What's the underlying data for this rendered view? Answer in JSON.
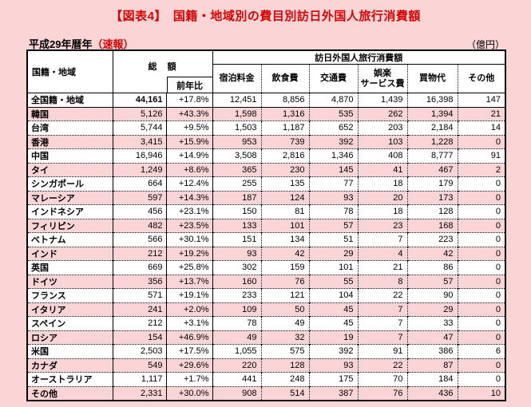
{
  "title": "【図表4】　国籍・地域別の費目別訪日外国人旅行消費額",
  "subtitle": {
    "era_label": "平成29年暦年",
    "flash_label": "（速報）",
    "unit_label": "（億円）"
  },
  "colors": {
    "accent_red": "#d60000",
    "pink_bg": "#fbd5d6",
    "row_white": "#ffffff",
    "border_black": "#000000"
  },
  "table": {
    "col_country": "国籍・地域",
    "col_total": "総　額",
    "col_yoy": "前年比",
    "group_header": "訪日外国人旅行消費額",
    "columns": [
      "宿泊料金",
      "飲食費",
      "交通費",
      "娯楽\nサービス費",
      "買物代",
      "その他"
    ],
    "rows": [
      {
        "name": "全国籍・地域",
        "total": "44,161",
        "yoy": "+17.8%",
        "values": [
          "12,451",
          "8,856",
          "4,870",
          "1,439",
          "16,398",
          "147"
        ],
        "bold_total": true
      },
      {
        "name": "韓国",
        "total": "5,126",
        "yoy": "+43.3%",
        "values": [
          "1,598",
          "1,316",
          "535",
          "262",
          "1,394",
          "21"
        ]
      },
      {
        "name": "台湾",
        "total": "5,744",
        "yoy": "+9.5%",
        "values": [
          "1,503",
          "1,187",
          "652",
          "203",
          "2,184",
          "14"
        ]
      },
      {
        "name": "香港",
        "total": "3,415",
        "yoy": "+15.9%",
        "values": [
          "953",
          "739",
          "392",
          "103",
          "1,228",
          "0"
        ]
      },
      {
        "name": "中国",
        "total": "16,946",
        "yoy": "+14.9%",
        "values": [
          "3,508",
          "2,816",
          "1,346",
          "408",
          "8,777",
          "91"
        ]
      },
      {
        "name": "タイ",
        "total": "1,249",
        "yoy": "+8.6%",
        "values": [
          "365",
          "230",
          "145",
          "41",
          "467",
          "2"
        ]
      },
      {
        "name": "シンガポール",
        "total": "664",
        "yoy": "+12.4%",
        "values": [
          "255",
          "135",
          "77",
          "18",
          "179",
          "0"
        ]
      },
      {
        "name": "マレーシア",
        "total": "597",
        "yoy": "+14.3%",
        "values": [
          "187",
          "124",
          "93",
          "20",
          "173",
          "0"
        ]
      },
      {
        "name": "インドネシア",
        "total": "456",
        "yoy": "+23.1%",
        "values": [
          "150",
          "81",
          "78",
          "18",
          "128",
          "0"
        ]
      },
      {
        "name": "フィリピン",
        "total": "482",
        "yoy": "+23.5%",
        "values": [
          "133",
          "101",
          "57",
          "23",
          "168",
          "0"
        ]
      },
      {
        "name": "ベトナム",
        "total": "566",
        "yoy": "+30.1%",
        "values": [
          "151",
          "134",
          "51",
          "7",
          "223",
          "0"
        ]
      },
      {
        "name": "インド",
        "total": "212",
        "yoy": "+19.2%",
        "values": [
          "93",
          "42",
          "29",
          "4",
          "42",
          "0"
        ]
      },
      {
        "name": "英国",
        "total": "669",
        "yoy": "+25.8%",
        "values": [
          "302",
          "159",
          "101",
          "21",
          "86",
          "0"
        ]
      },
      {
        "name": "ドイツ",
        "total": "356",
        "yoy": "+13.7%",
        "values": [
          "160",
          "76",
          "55",
          "8",
          "57",
          "0"
        ]
      },
      {
        "name": "フランス",
        "total": "571",
        "yoy": "+19.1%",
        "values": [
          "233",
          "121",
          "104",
          "22",
          "90",
          "0"
        ]
      },
      {
        "name": "イタリア",
        "total": "241",
        "yoy": "+2.0%",
        "values": [
          "109",
          "50",
          "45",
          "7",
          "29",
          "0"
        ]
      },
      {
        "name": "スペイン",
        "total": "212",
        "yoy": "+3.1%",
        "values": [
          "78",
          "49",
          "45",
          "7",
          "33",
          "0"
        ]
      },
      {
        "name": "ロシア",
        "total": "154",
        "yoy": "+46.9%",
        "values": [
          "49",
          "32",
          "19",
          "7",
          "47",
          "0"
        ]
      },
      {
        "name": "米国",
        "total": "2,503",
        "yoy": "+17.5%",
        "values": [
          "1,055",
          "575",
          "392",
          "91",
          "386",
          "6"
        ]
      },
      {
        "name": "カナダ",
        "total": "549",
        "yoy": "+29.6%",
        "values": [
          "220",
          "128",
          "93",
          "22",
          "87",
          "0"
        ]
      },
      {
        "name": "オーストラリア",
        "total": "1,117",
        "yoy": "+1.7%",
        "values": [
          "441",
          "248",
          "175",
          "70",
          "184",
          "0"
        ]
      },
      {
        "name": "その他",
        "total": "2,331",
        "yoy": "+30.0%",
        "values": [
          "908",
          "514",
          "387",
          "76",
          "436",
          "10"
        ]
      }
    ]
  }
}
